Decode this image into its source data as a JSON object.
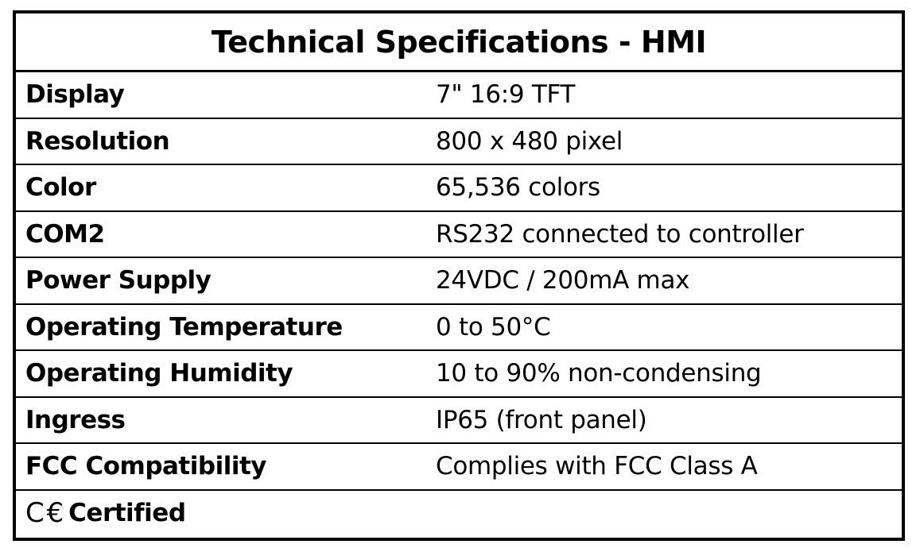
{
  "title": "Technical Specifications - HMI",
  "rows": [
    {
      "label": "Display",
      "value": "7\" 16:9 TFT"
    },
    {
      "label": "Resolution",
      "value": "800 x 480 pixel"
    },
    {
      "label": "Color",
      "value": "65,536 colors"
    },
    {
      "label": "COM2",
      "value": "RS232 connected to controller"
    },
    {
      "label": "Power Supply",
      "value": "24VDC / 200mA max"
    },
    {
      "label": "Operating Temperature",
      "value": "0 to 50°C"
    },
    {
      "label": "Operating Humidity",
      "value": "10 to 90% non-condensing"
    },
    {
      "label": "Ingress",
      "value": "IP65 (front panel)"
    },
    {
      "label": "FCC Compatibility",
      "value": "Complies with FCC Class A"
    }
  ],
  "certification": {
    "logo": "CE",
    "label": "Certified",
    "icon": "ce-mark-icon"
  }
}
